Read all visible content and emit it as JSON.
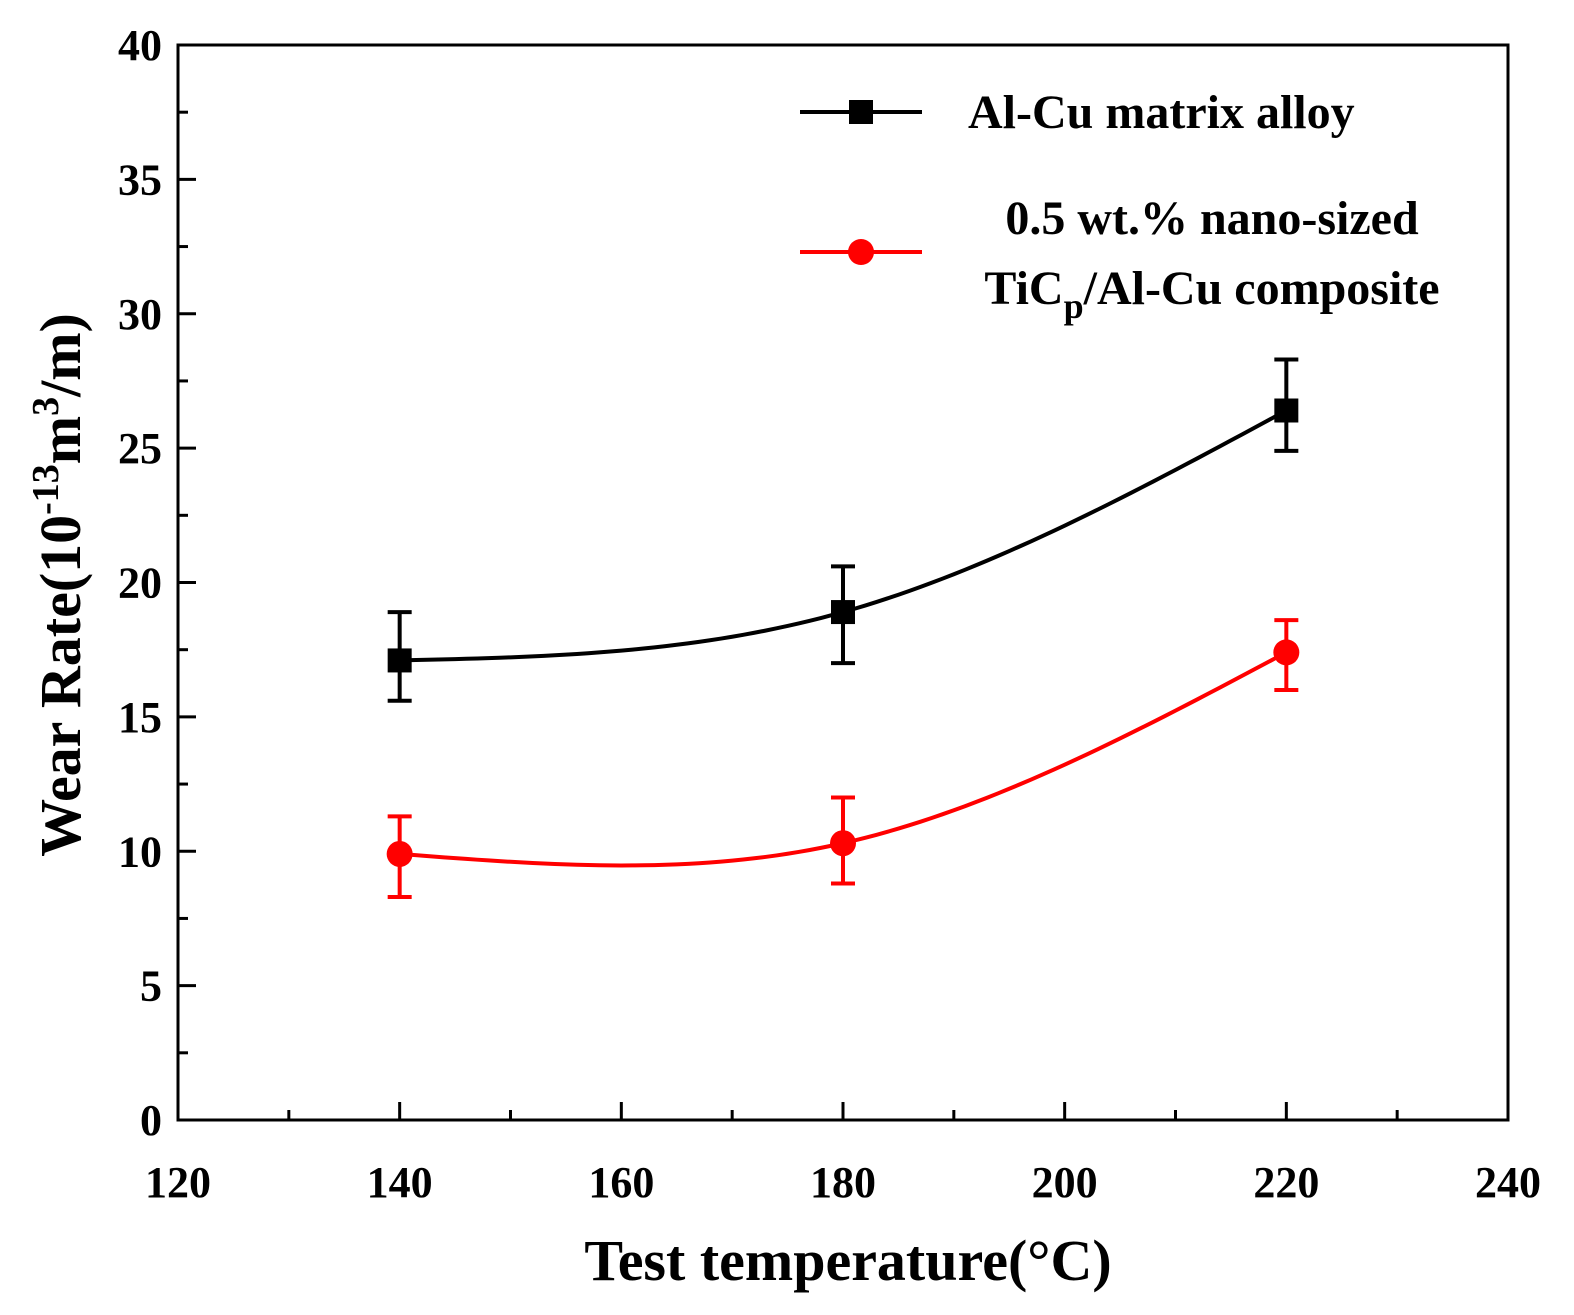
{
  "chart_data": {
    "type": "line",
    "title": "",
    "xlabel": "Test temperature(°C)",
    "ylabel": {
      "prefix": "Wear Rate(10",
      "exp": "-13",
      "mid": "m",
      "exp2": "3",
      "suffix": "/m)"
    },
    "xlim": [
      120,
      240
    ],
    "ylim": [
      0,
      40
    ],
    "xticks": [
      120,
      140,
      160,
      180,
      200,
      220,
      240
    ],
    "yticks": [
      0,
      5,
      10,
      15,
      20,
      25,
      30,
      35,
      40
    ],
    "x": [
      140,
      180,
      220
    ],
    "series": [
      {
        "name": "Al-Cu matrix alloy",
        "color": "#000000",
        "marker": "square",
        "values": [
          17.1,
          18.9,
          26.4
        ],
        "err_low": [
          15.6,
          17.0,
          24.9
        ],
        "err_high": [
          18.9,
          20.6,
          28.3
        ]
      },
      {
        "name": "0.5 wt.% nano-sized TiCp/Al-Cu composite",
        "color": "#ff0000",
        "marker": "circle",
        "values": [
          9.9,
          10.3,
          17.4
        ],
        "err_low": [
          8.3,
          8.8,
          16.0
        ],
        "err_high": [
          11.3,
          12.0,
          18.6
        ]
      }
    ],
    "legend": {
      "position": "top-right",
      "entries": [
        {
          "lines": [
            "Al-Cu matrix alloy"
          ]
        },
        {
          "lines": [
            "0.5 wt.% nano-sized",
            "TiC",
            "p",
            "/Al-Cu composite"
          ]
        }
      ]
    }
  }
}
